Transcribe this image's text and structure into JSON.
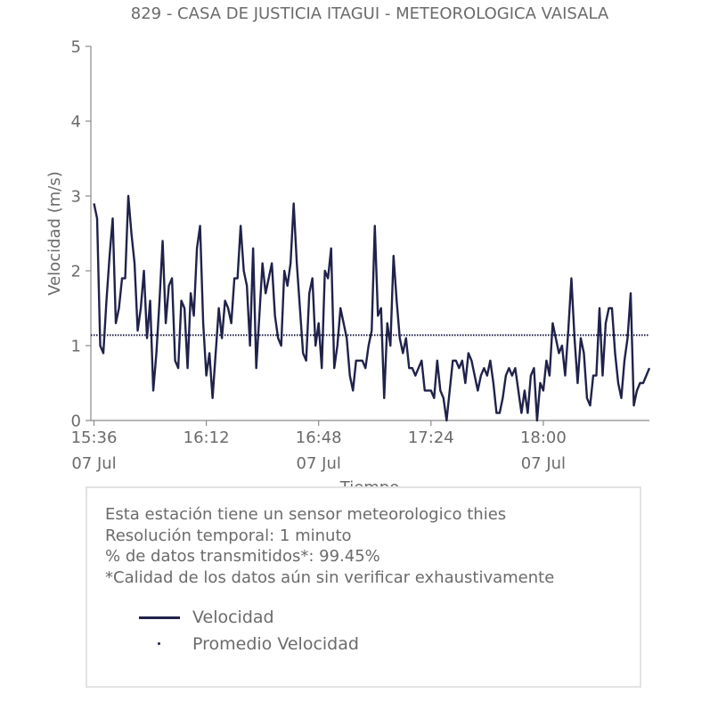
{
  "chart_data": {
    "type": "line",
    "title": "829 - CASA DE JUSTICIA ITAGUI - METEOROLOGICA VAISALA",
    "xlabel": "Tiempo",
    "ylabel": "Velocidad (m/s)",
    "ylim": [
      0,
      5
    ],
    "yticks": [
      "0",
      "1",
      "2",
      "3",
      "4",
      "5"
    ],
    "xticks": [
      {
        "minute": 0,
        "line1": "15:36",
        "line2": "07 Jul"
      },
      {
        "minute": 36,
        "line1": "16:12",
        "line2": ""
      },
      {
        "minute": 72,
        "line1": "16:48",
        "line2": "07 Jul"
      },
      {
        "minute": 108,
        "line1": "17:24",
        "line2": ""
      },
      {
        "minute": 144,
        "line1": "18:00",
        "line2": "07 Jul"
      }
    ],
    "xlim_minutes": [
      -1,
      178
    ],
    "grid": false,
    "series": [
      {
        "name": "Velocidad",
        "color": "#20224a",
        "style": "solid",
        "values": [
          2.9,
          2.7,
          1.0,
          0.9,
          1.6,
          2.2,
          2.7,
          1.3,
          1.5,
          1.9,
          1.9,
          3.0,
          2.5,
          2.1,
          1.2,
          1.5,
          2.0,
          1.1,
          1.6,
          0.4,
          0.9,
          1.6,
          2.4,
          1.3,
          1.8,
          1.9,
          0.8,
          0.7,
          1.6,
          1.5,
          0.7,
          1.7,
          1.4,
          2.3,
          2.6,
          1.3,
          0.6,
          0.9,
          0.3,
          0.9,
          1.5,
          1.1,
          1.6,
          1.5,
          1.3,
          1.9,
          1.9,
          2.6,
          2.0,
          1.8,
          1.0,
          2.3,
          0.7,
          1.4,
          2.1,
          1.7,
          1.9,
          2.1,
          1.4,
          1.1,
          1.0,
          2.0,
          1.8,
          2.1,
          2.9,
          2.1,
          1.5,
          0.9,
          0.8,
          1.7,
          1.9,
          1.0,
          1.3,
          0.7,
          2.0,
          1.9,
          2.3,
          0.7,
          1.0,
          1.5,
          1.3,
          1.1,
          0.6,
          0.4,
          0.8,
          0.8,
          0.8,
          0.7,
          1.0,
          1.2,
          2.6,
          1.4,
          1.5,
          0.3,
          1.3,
          1.0,
          2.2,
          1.6,
          1.1,
          0.9,
          1.1,
          0.7,
          0.7,
          0.6,
          0.7,
          0.8,
          0.4,
          0.4,
          0.4,
          0.3,
          0.8,
          0.4,
          0.3,
          0.0,
          0.4,
          0.8,
          0.8,
          0.7,
          0.8,
          0.5,
          0.9,
          0.8,
          0.6,
          0.4,
          0.6,
          0.7,
          0.6,
          0.8,
          0.5,
          0.1,
          0.1,
          0.3,
          0.6,
          0.7,
          0.6,
          0.7,
          0.4,
          0.1,
          0.4,
          0.1,
          0.6,
          0.7,
          0.0,
          0.5,
          0.4,
          0.8,
          0.6,
          1.3,
          1.1,
          0.9,
          1.0,
          0.6,
          1.2,
          1.9,
          1.1,
          0.5,
          1.1,
          0.9,
          0.3,
          0.2,
          0.6,
          0.6,
          1.5,
          0.6,
          1.3,
          1.5,
          1.5,
          0.9,
          0.5,
          0.3,
          0.8,
          1.1,
          1.7,
          0.2,
          0.4,
          0.5,
          0.5,
          0.6,
          0.7
        ]
      },
      {
        "name": "Promedio Velocidad",
        "color": "#20224a",
        "style": "dotted",
        "value": 1.14
      }
    ]
  },
  "info": {
    "lines": [
      "Esta estación tiene un sensor meteorologico thies",
      "Resolución temporal: 1 minuto",
      "% de datos transmitidos*: 99.45%",
      "*Calidad de los datos aún sin verificar exhaustivamente"
    ],
    "legend": [
      {
        "label": "Velocidad"
      },
      {
        "label": "Promedio Velocidad"
      }
    ]
  }
}
